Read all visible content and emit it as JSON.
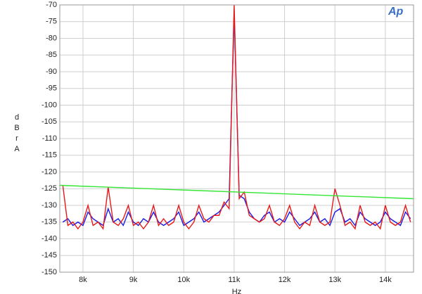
{
  "chart_data": {
    "type": "line",
    "logo": "Ap",
    "xlabel": "Hz",
    "ylabel": "dBr A",
    "xlim": [
      7540,
      14560
    ],
    "ylim": [
      -150,
      -70
    ],
    "grid": true,
    "xticks": [
      {
        "value": 8000,
        "label": "8k"
      },
      {
        "value": 9000,
        "label": "9k"
      },
      {
        "value": 10000,
        "label": "10k"
      },
      {
        "value": 11000,
        "label": "11k"
      },
      {
        "value": 12000,
        "label": "12k"
      },
      {
        "value": 13000,
        "label": "13k"
      },
      {
        "value": 14000,
        "label": "14k"
      }
    ],
    "yticks": [
      -70,
      -75,
      -80,
      -85,
      -90,
      -95,
      -100,
      -105,
      -110,
      -115,
      -120,
      -125,
      -130,
      -135,
      -140,
      -145,
      -150
    ],
    "x": [
      7600,
      7700,
      7800,
      7900,
      8000,
      8100,
      8200,
      8300,
      8400,
      8500,
      8600,
      8700,
      8800,
      8900,
      9000,
      9100,
      9200,
      9300,
      9400,
      9500,
      9600,
      9700,
      9800,
      9900,
      10000,
      10100,
      10200,
      10300,
      10400,
      10500,
      10600,
      10700,
      10800,
      10900,
      11000,
      11100,
      11200,
      11300,
      11400,
      11500,
      11600,
      11700,
      11800,
      11900,
      12000,
      12100,
      12200,
      12300,
      12400,
      12500,
      12600,
      12700,
      12800,
      12900,
      13000,
      13100,
      13200,
      13300,
      13400,
      13500,
      13600,
      13700,
      13800,
      13900,
      14000,
      14100,
      14200,
      14300,
      14400,
      14500
    ],
    "series": [
      {
        "color": "#1a1ae6",
        "values": [
          -135,
          -134,
          -136,
          -135,
          -136,
          -132,
          -134,
          -135,
          -136,
          -131,
          -135,
          -134,
          -136,
          -132,
          -135,
          -136,
          -134,
          -135,
          -132,
          -135,
          -136,
          -135,
          -134,
          -132,
          -136,
          -135,
          -134,
          -132,
          -135,
          -134,
          -133,
          -132,
          -130,
          -128,
          -72,
          -127,
          -128,
          -132,
          -134,
          -135,
          -133,
          -132,
          -135,
          -134,
          -135,
          -132,
          -134,
          -136,
          -135,
          -134,
          -132,
          -135,
          -134,
          -136,
          -132,
          -131,
          -135,
          -134,
          -136,
          -132,
          -134,
          -135,
          -136,
          -135,
          -132,
          -134,
          -135,
          -136,
          -132,
          -134
        ]
      },
      {
        "color": "#e61a1a",
        "values": [
          -124,
          -136,
          -135,
          -137,
          -135,
          -130,
          -136,
          -135,
          -137,
          -124.5,
          -135,
          -136,
          -134,
          -130,
          -136,
          -135,
          -137,
          -135,
          -130,
          -136,
          -134,
          -136,
          -135,
          -130,
          -135,
          -137,
          -135,
          -130,
          -134,
          -135,
          -133,
          -133,
          -129,
          -131,
          -70,
          -128,
          -126,
          -133,
          -134,
          -135,
          -134,
          -130,
          -135,
          -136,
          -134,
          -130,
          -135,
          -137,
          -135,
          -136,
          -130,
          -135,
          -136,
          -135,
          -125,
          -130,
          -136,
          -135,
          -137,
          -130,
          -135,
          -136,
          -135,
          -137,
          -130,
          -135,
          -136,
          -135,
          -130,
          -135
        ]
      },
      {
        "color": "#33e633",
        "x": [
          7540,
          14560
        ],
        "values": [
          -124,
          -128
        ]
      }
    ]
  }
}
